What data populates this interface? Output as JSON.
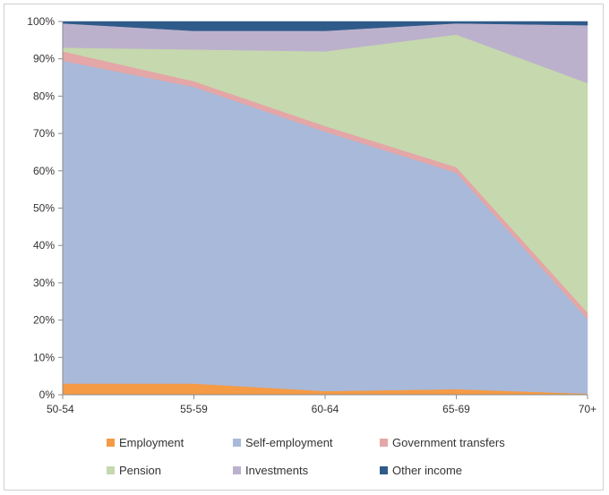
{
  "chart_data": {
    "type": "area",
    "stacked": true,
    "percent": true,
    "categories": [
      "50-54",
      "55-59",
      "60-64",
      "65-69",
      "70+"
    ],
    "series": [
      {
        "name": "Employment",
        "color": "#f59a45",
        "values": [
          3,
          3,
          1,
          1.5,
          0.3
        ]
      },
      {
        "name": "Self-employment",
        "color": "#a9b9d9",
        "values": [
          86.5,
          79.5,
          69.5,
          58,
          20
        ]
      },
      {
        "name": "Government transfers",
        "color": "#e4a6a6",
        "values": [
          2.5,
          1.5,
          1.5,
          1.5,
          1.7
        ]
      },
      {
        "name": "Pension",
        "color": "#c6d8ae",
        "values": [
          1,
          8.5,
          20,
          35.5,
          61.5
        ]
      },
      {
        "name": "Investments",
        "color": "#bcb1cc",
        "values": [
          6.5,
          5,
          5.5,
          3,
          15.5
        ]
      },
      {
        "name": "Other income",
        "color": "#2f5b8a",
        "values": [
          0.5,
          2.5,
          2.5,
          0.5,
          1
        ]
      }
    ],
    "y_ticks": [
      "0%",
      "10%",
      "20%",
      "30%",
      "40%",
      "50%",
      "60%",
      "70%",
      "80%",
      "90%",
      "100%"
    ],
    "ylim": [
      0,
      100
    ],
    "grid": false,
    "legend_position": "bottom"
  }
}
